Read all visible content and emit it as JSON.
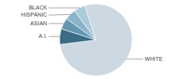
{
  "chart_data": {
    "type": "pie",
    "categories": [
      "WHITE",
      "A.I.",
      "ASIAN",
      "HISPANIC",
      "BLACK"
    ],
    "values": [
      78,
      7,
      5,
      5,
      5
    ],
    "colors": [
      "#ccd8e2",
      "#3a6b87",
      "#6496b0",
      "#8ab4c8",
      "#aacbdb"
    ]
  }
}
